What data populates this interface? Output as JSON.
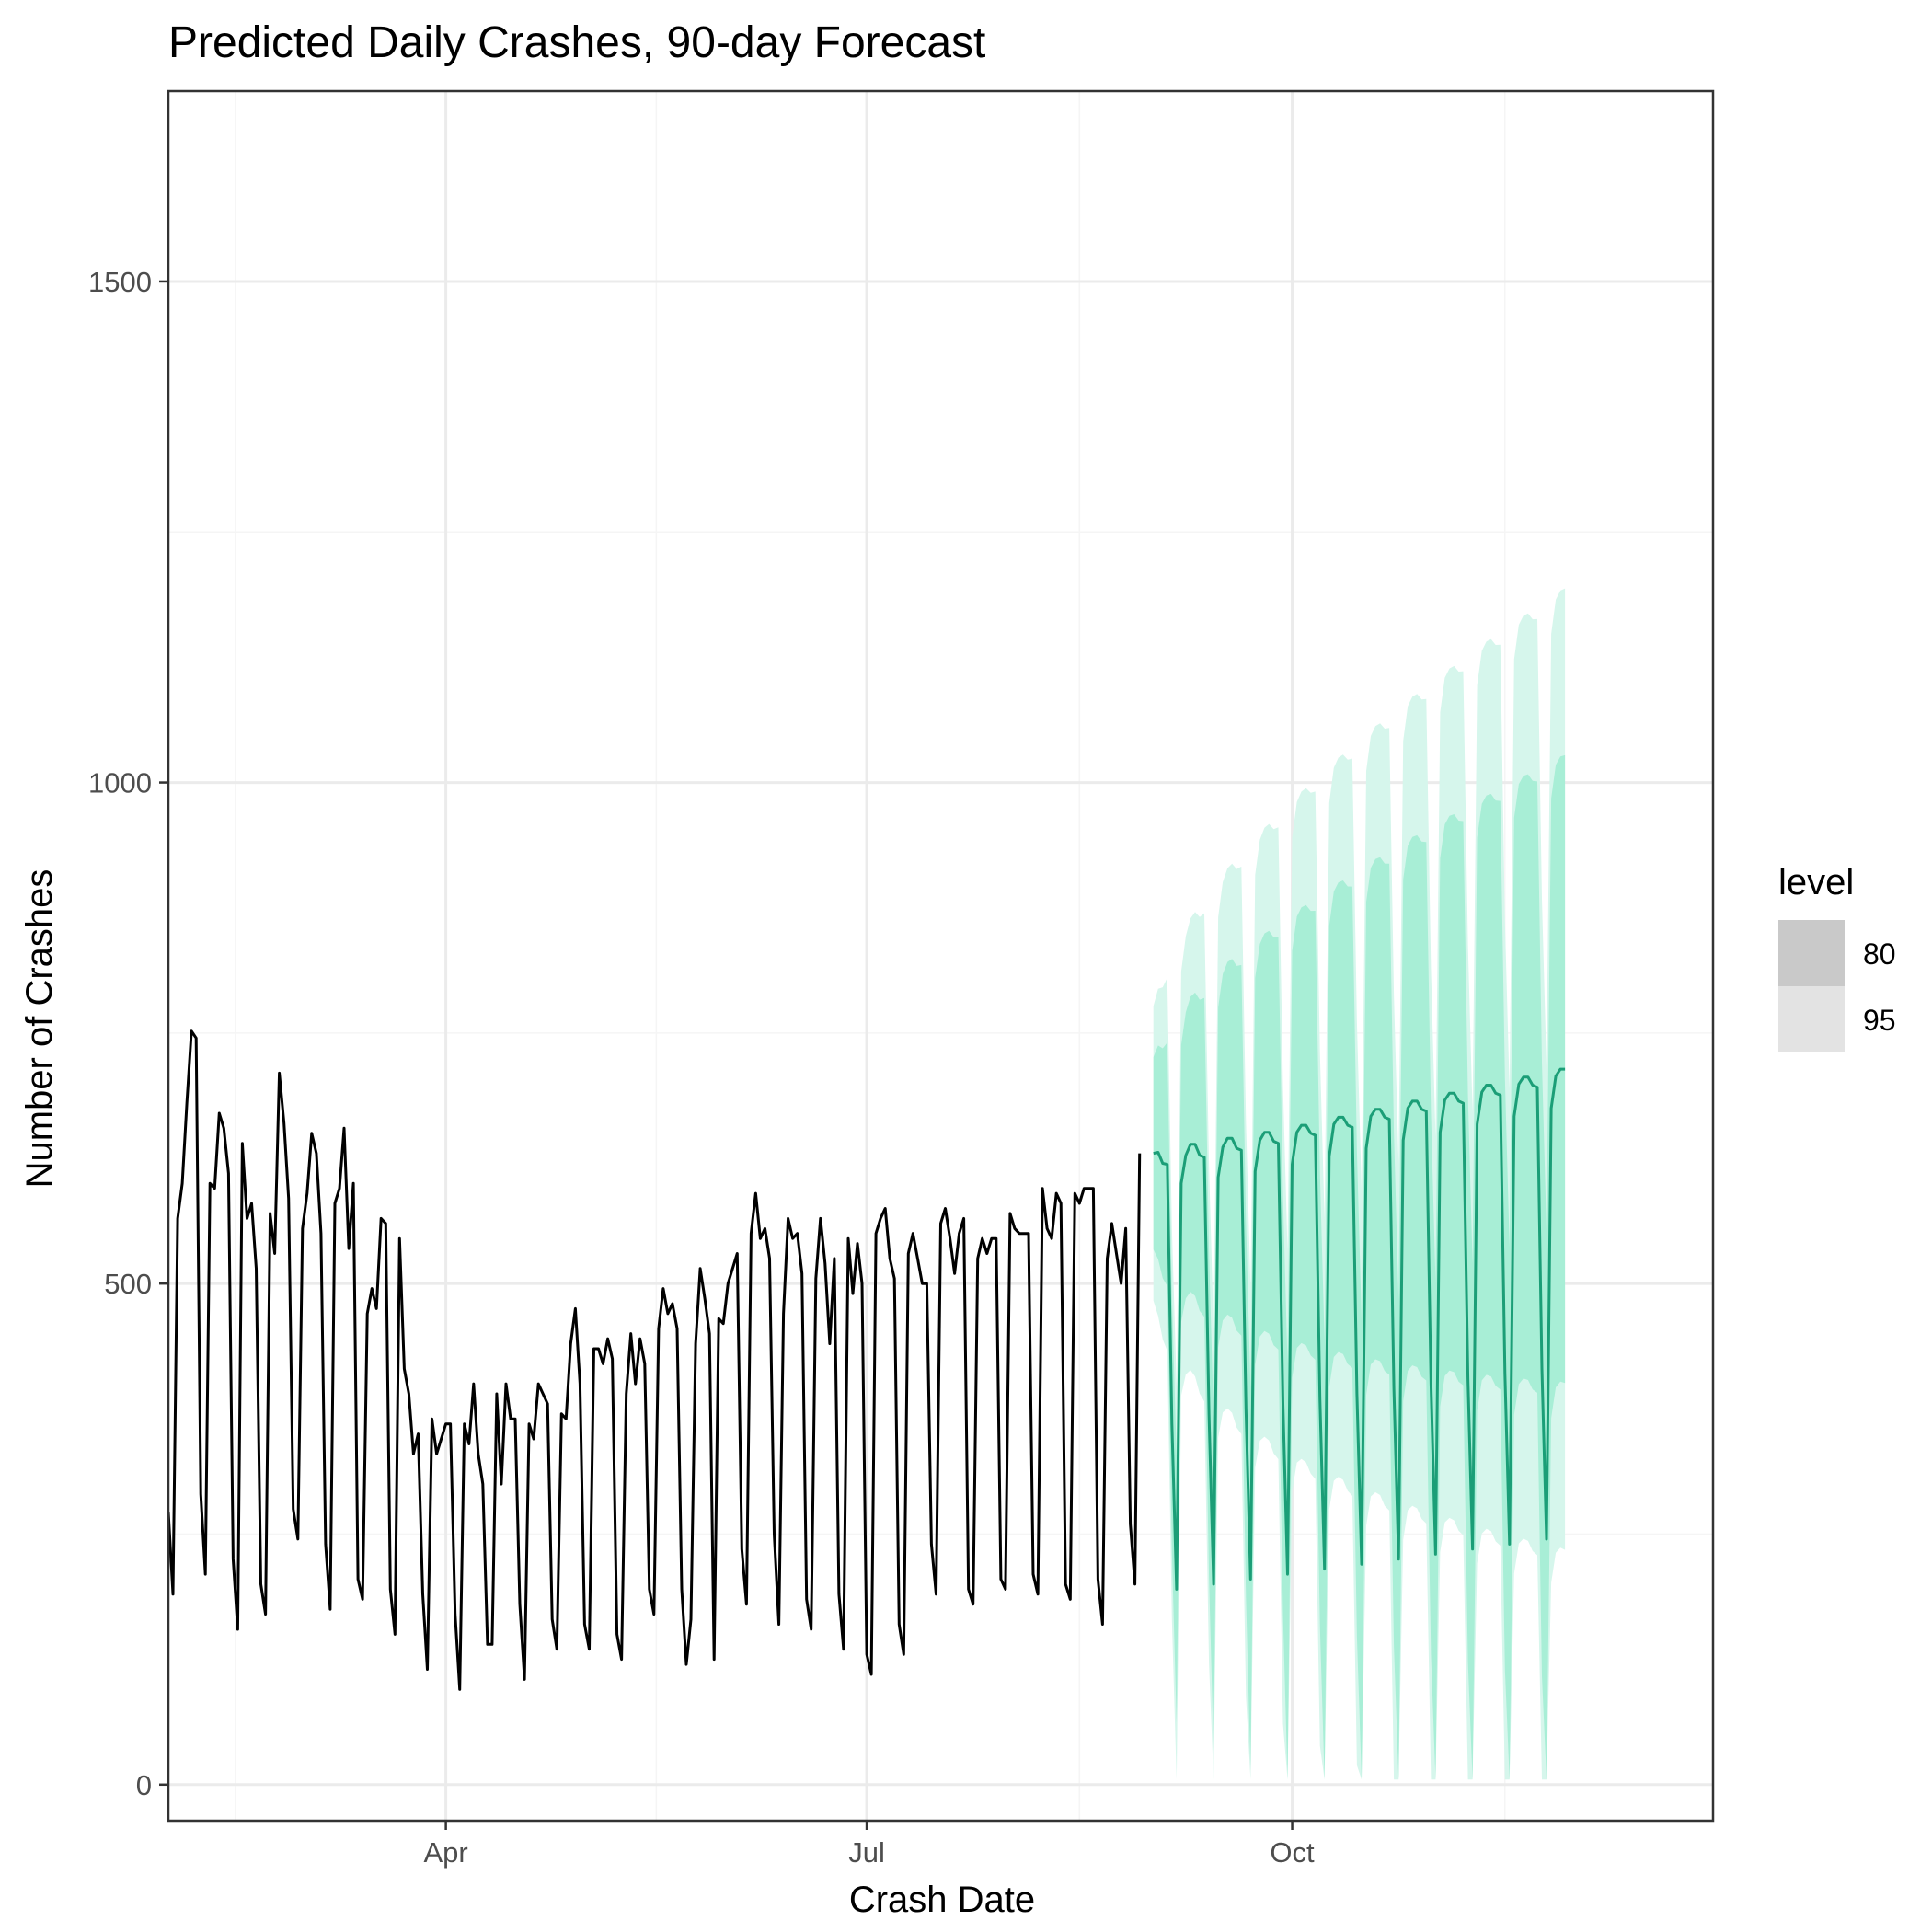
{
  "chart_data": {
    "type": "line",
    "title": "Predicted Daily Crashes, 90-day Forecast",
    "xlabel": "Crash Date",
    "ylabel": "Number of Crashes",
    "x_tick_labels": [
      "Apr",
      "Jul",
      "Oct"
    ],
    "x_tick_dates": [
      "2020-04-01",
      "2020-07-01",
      "2020-10-01"
    ],
    "xlim": [
      "2020-02-01",
      "2020-12-31"
    ],
    "y_ticks": [
      0,
      500,
      1000,
      1500
    ],
    "ylim": [
      -36,
      1690
    ],
    "grid": true,
    "legend": {
      "title": "level",
      "position": "right",
      "entries": [
        {
          "label": "80",
          "color": "#c9c9c9"
        },
        {
          "label": "95",
          "color": "#e3e3e3"
        }
      ]
    },
    "colors": {
      "history": "#000000",
      "forecast": "#1b9e77",
      "band_80": "#a8eed6",
      "band_95": "#d6f6ec",
      "grid_major": "#ebebeb",
      "grid_minor": "#f5f5f5",
      "panel_border": "#333333"
    },
    "series": [
      {
        "name": "history",
        "start_date": "2020-02-01",
        "weekly_pattern": "Sat,Sun,Mon,Tue,Wed,Thu,Fri",
        "values": [
          272,
          190,
          565,
          600,
          680,
          752,
          745,
          290,
          210,
          600,
          595,
          670,
          655,
          610,
          225,
          155,
          640,
          565,
          580,
          515,
          200,
          170,
          570,
          530,
          710,
          660,
          585,
          275,
          245,
          555,
          590,
          650,
          630,
          550,
          240,
          175,
          580,
          595,
          655,
          535,
          600,
          205,
          185,
          470,
          495,
          475,
          565,
          560,
          195,
          150,
          545,
          415,
          390,
          330,
          350,
          190,
          115,
          365,
          330,
          345,
          360,
          360,
          170,
          95,
          360,
          340,
          400,
          330,
          300,
          140,
          140,
          390,
          300,
          400,
          365,
          365,
          180,
          105,
          360,
          345,
          400,
          390,
          380,
          165,
          135,
          370,
          365,
          440,
          475,
          400,
          160,
          135,
          435,
          435,
          420,
          445,
          425,
          150,
          125,
          390,
          450,
          400,
          445,
          420,
          195,
          170,
          455,
          495,
          470,
          480,
          455,
          195,
          120,
          165,
          440,
          515,
          485,
          450,
          125,
          465,
          460,
          500,
          515,
          530,
          235,
          180,
          550,
          590,
          545,
          555,
          525,
          250,
          160,
          470,
          565,
          545,
          550,
          510,
          185,
          155,
          505,
          565,
          520,
          440,
          525,
          190,
          135,
          545,
          490,
          540,
          500,
          130,
          110,
          550,
          565,
          575,
          525,
          505,
          160,
          130,
          530,
          550,
          525,
          500,
          500,
          240,
          190,
          560,
          575,
          545,
          510,
          550,
          565,
          195,
          180,
          525,
          545,
          530,
          545,
          545,
          205,
          195,
          570,
          555,
          550,
          550,
          550,
          210,
          190,
          595,
          555,
          545,
          590,
          580,
          200,
          185,
          590,
          580,
          595,
          595,
          595,
          205,
          160,
          525,
          560,
          530,
          500,
          555,
          260,
          200,
          630
        ]
      },
      {
        "name": "forecast",
        "start_date": "2020-09-01",
        "weekly_pattern": "Tue,Wed,Thu,Fri,Sat,Sun,Mon",
        "values": [
          630,
          631,
          620,
          619,
          360,
          195,
          600,
          628,
          639,
          639,
          628,
          626,
          370,
          200,
          606,
          636,
          645,
          645,
          635,
          633,
          375,
          205,
          612,
          643,
          651,
          651,
          642,
          640,
          380,
          210,
          619,
          651,
          658,
          658,
          650,
          648,
          385,
          215,
          627,
          659,
          666,
          666,
          658,
          656,
          390,
          220,
          635,
          667,
          674,
          674,
          666,
          664,
          395,
          225,
          643,
          675,
          682,
          682,
          674,
          672,
          400,
          230,
          651,
          683,
          690,
          690,
          682,
          680,
          405,
          235,
          659,
          691,
          698,
          698,
          690,
          688,
          410,
          240,
          667,
          699,
          706,
          706,
          698,
          696,
          415,
          245,
          675,
          707,
          714,
          714
        ]
      }
    ]
  }
}
